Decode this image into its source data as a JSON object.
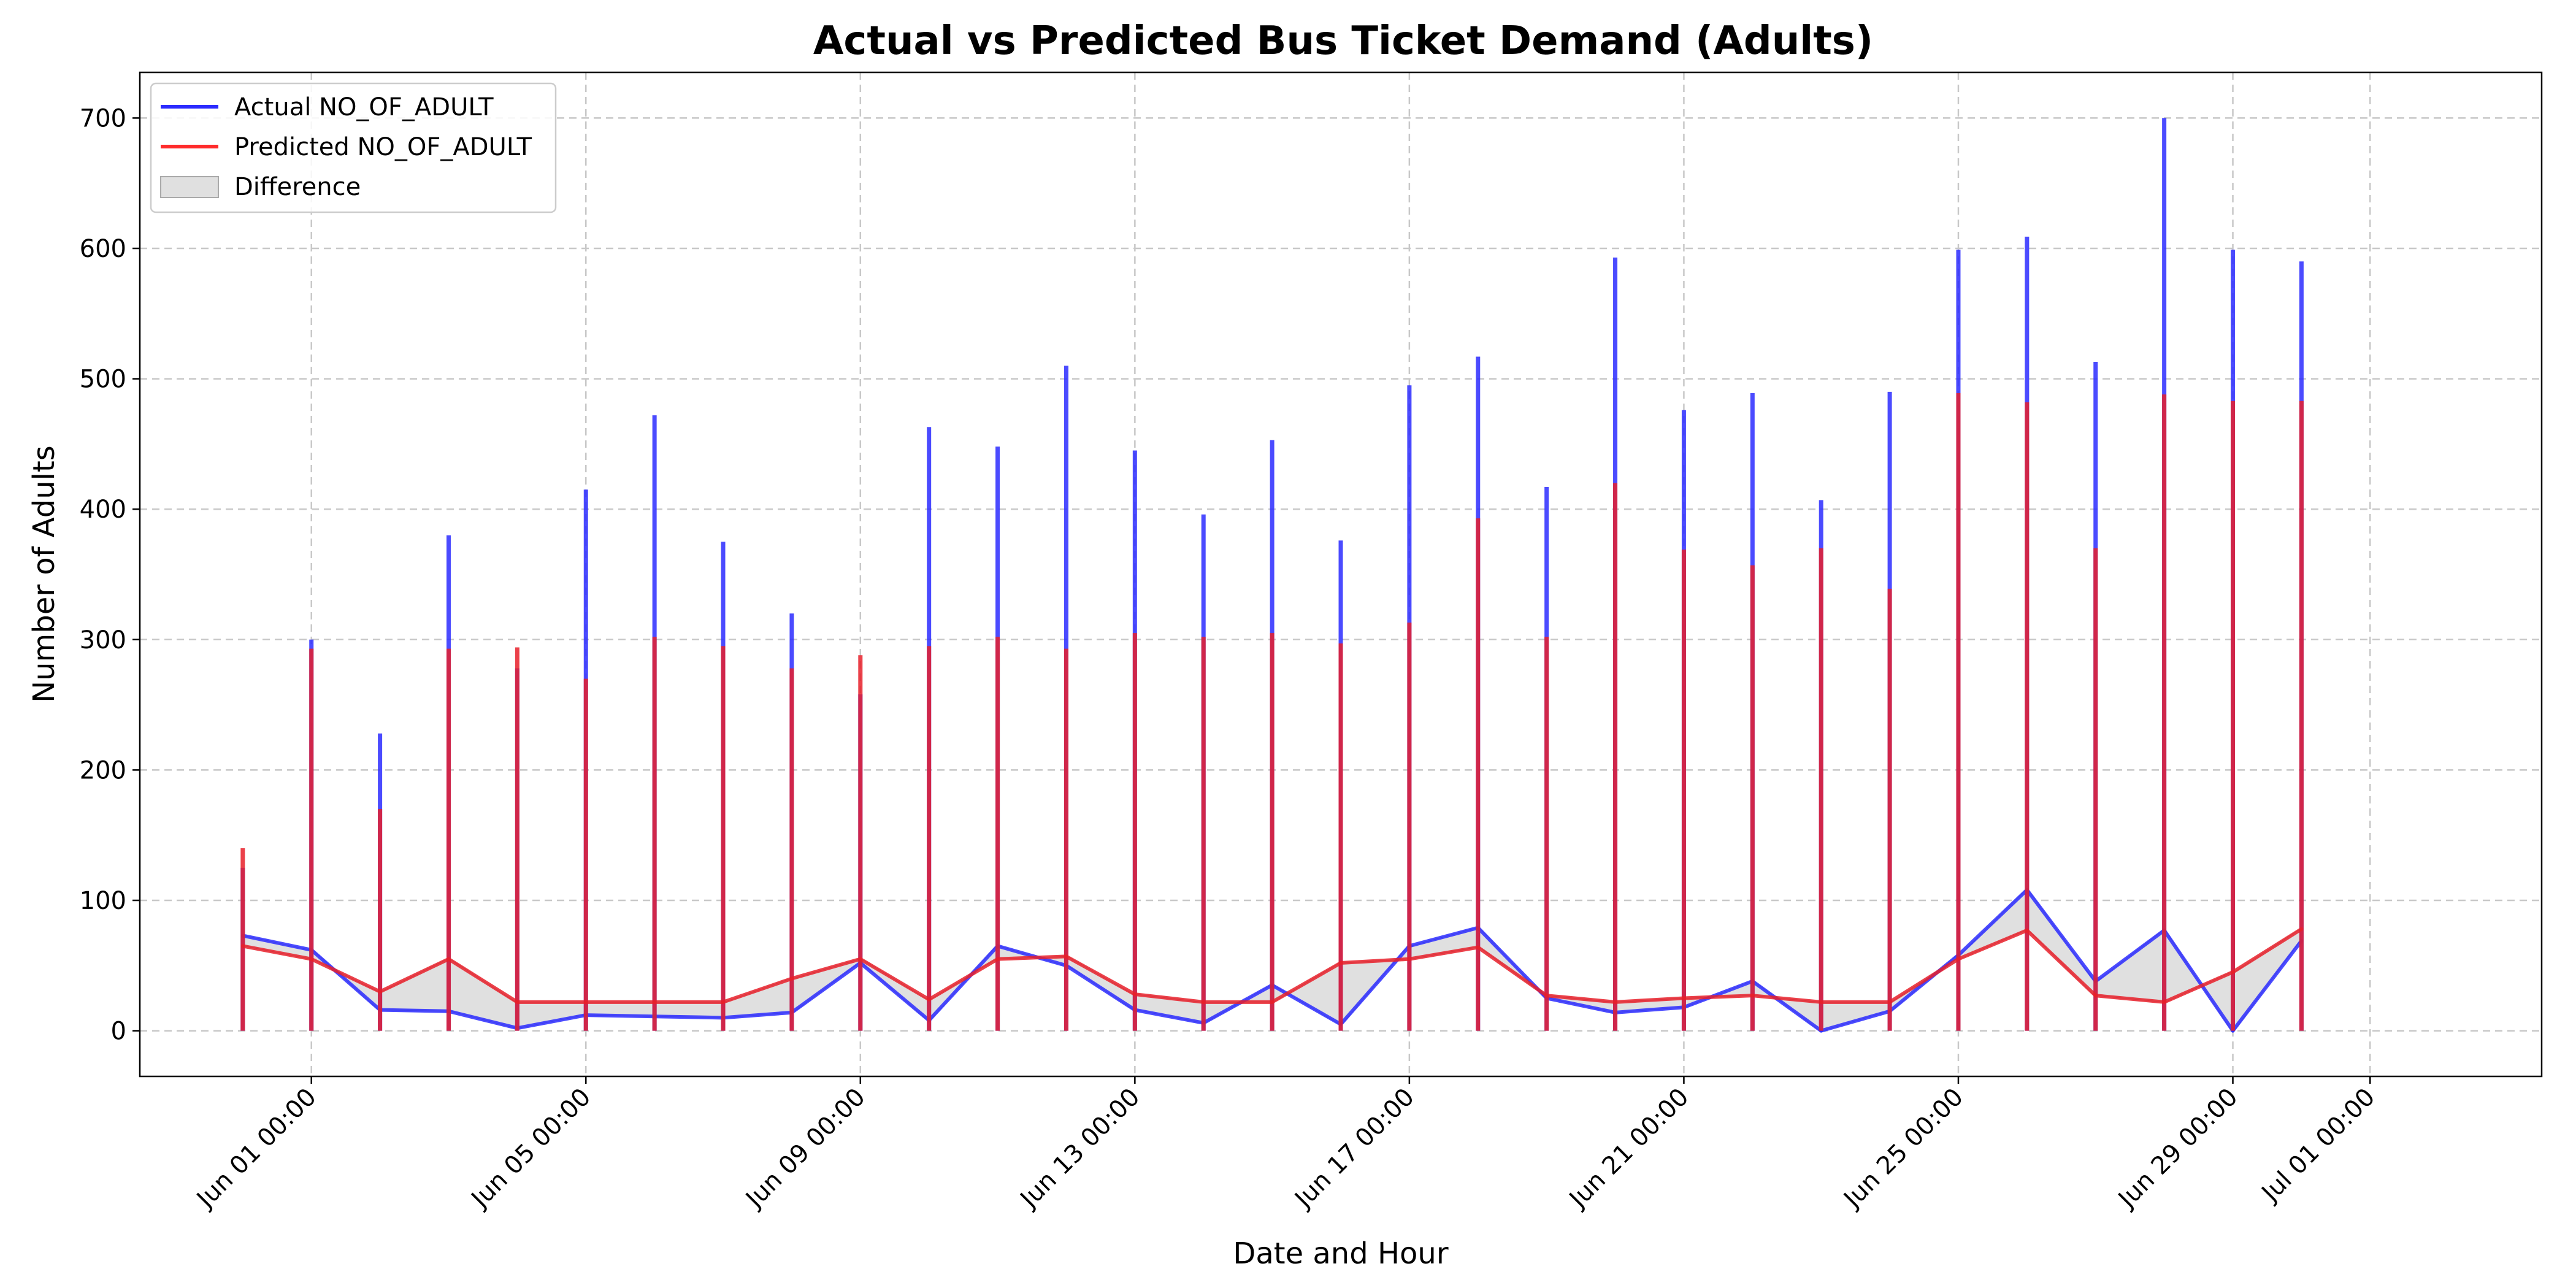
{
  "chart_data": {
    "type": "line",
    "title": "Actual vs Predicted Bus Ticket Demand (Adults)",
    "xlabel": "Date and Hour",
    "ylabel": "Number of Adults",
    "ylim": [
      -35,
      735
    ],
    "xlim_days": [
      -2.5,
      32.5
    ],
    "grid": true,
    "legend_position": "top-left",
    "y_ticks": [
      0,
      100,
      200,
      300,
      400,
      500,
      600,
      700
    ],
    "x_ticks": [
      {
        "day": 0,
        "label": "Jun 01 00:00"
      },
      {
        "day": 4,
        "label": "Jun 05 00:00"
      },
      {
        "day": 8,
        "label": "Jun 09 00:00"
      },
      {
        "day": 12,
        "label": "Jun 13 00:00"
      },
      {
        "day": 16,
        "label": "Jun 17 00:00"
      },
      {
        "day": 20,
        "label": "Jun 21 00:00"
      },
      {
        "day": 24,
        "label": "Jun 25 00:00"
      },
      {
        "day": 28,
        "label": "Jun 29 00:00"
      },
      {
        "day": 30,
        "label": "Jul 01 00:00"
      }
    ],
    "legend": [
      {
        "label": "Actual NO_OF_ADULT",
        "kind": "line",
        "color": "#2b2bff"
      },
      {
        "label": "Predicted NO_OF_ADULT",
        "kind": "line",
        "color": "#ff2b2b"
      },
      {
        "label": "Difference",
        "kind": "patch",
        "color": "#e0e0e0"
      }
    ],
    "colors": {
      "actual": "#2b2bff",
      "predicted": "#e8202a",
      "difference": "#e0e0e0",
      "grid": "#c8c8c8"
    },
    "days": [
      -1,
      0,
      1,
      2,
      3,
      4,
      5,
      6,
      7,
      8,
      9,
      10,
      11,
      12,
      13,
      14,
      15,
      16,
      17,
      18,
      19,
      20,
      21,
      22,
      23,
      24,
      25,
      26,
      27,
      28,
      29
    ],
    "series": [
      {
        "name": "Actual NO_OF_ADULT",
        "peak": [
          125,
          300,
          228,
          380,
          278,
          415,
          472,
          375,
          320,
          258,
          463,
          448,
          510,
          445,
          396,
          453,
          376,
          495,
          517,
          417,
          593,
          476,
          489,
          407,
          490,
          599,
          609,
          513,
          700,
          599,
          590
        ],
        "values": [
          73,
          62,
          16,
          15,
          2,
          12,
          11,
          10,
          14,
          52,
          8,
          65,
          50,
          16,
          6,
          35,
          5,
          65,
          79,
          25,
          14,
          18,
          38,
          0,
          15,
          58,
          108,
          38,
          77,
          0,
          69
        ]
      },
      {
        "name": "Predicted NO_OF_ADULT",
        "peak": [
          140,
          293,
          170,
          293,
          294,
          270,
          302,
          295,
          278,
          288,
          295,
          302,
          293,
          305,
          302,
          305,
          297,
          313,
          393,
          302,
          420,
          369,
          357,
          370,
          339,
          489,
          482,
          370,
          488,
          483,
          483
        ],
        "values": [
          65,
          55,
          30,
          55,
          22,
          22,
          22,
          22,
          40,
          55,
          24,
          55,
          57,
          28,
          22,
          22,
          52,
          55,
          64,
          27,
          22,
          25,
          27,
          22,
          22,
          55,
          77,
          27,
          22,
          45,
          78
        ]
      }
    ]
  }
}
